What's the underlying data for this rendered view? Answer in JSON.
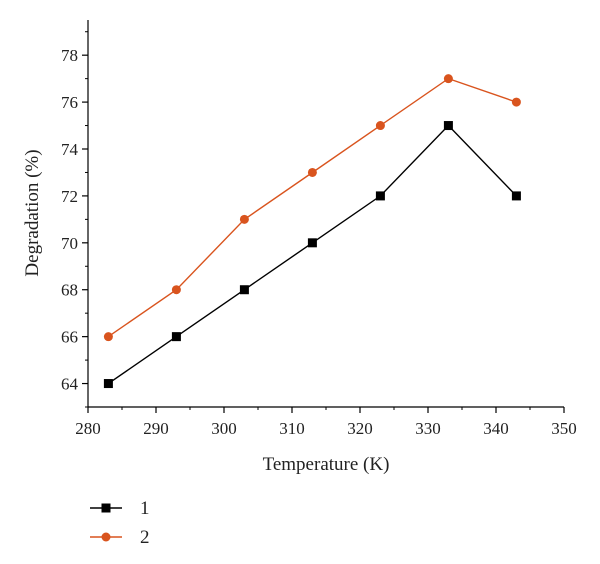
{
  "chart_data": {
    "type": "line",
    "xlabel": "Temperature (K)",
    "ylabel": "Degradation (%)",
    "xlim": [
      280,
      350
    ],
    "ylim": [
      63,
      79.5
    ],
    "x_ticks": [
      280,
      290,
      300,
      310,
      320,
      330,
      340,
      350
    ],
    "y_ticks": [
      64,
      66,
      68,
      70,
      72,
      74,
      76,
      78
    ],
    "grid": false,
    "legend_position": "bottom-left",
    "x": [
      283,
      293,
      303,
      313,
      323,
      333,
      343
    ],
    "series": [
      {
        "name": "1",
        "marker": "square",
        "color": "#000000",
        "values": [
          64,
          66,
          68,
          70,
          72,
          75,
          72
        ]
      },
      {
        "name": "2",
        "marker": "circle",
        "color": "#d9541e",
        "values": [
          66,
          68,
          71,
          73,
          75,
          77,
          76
        ]
      }
    ]
  }
}
